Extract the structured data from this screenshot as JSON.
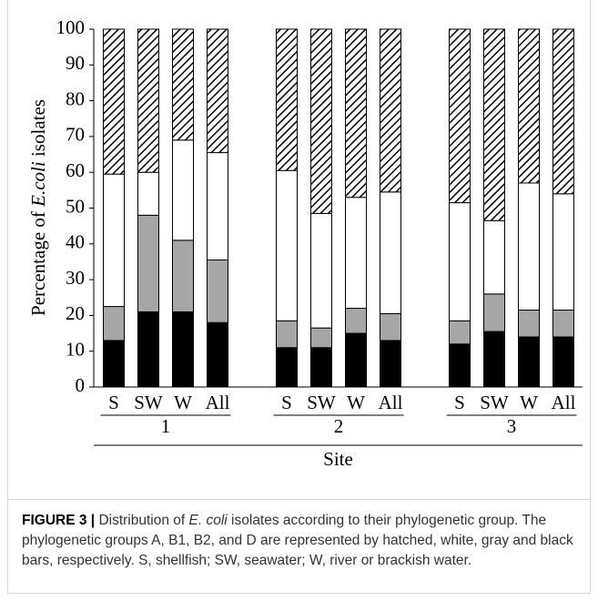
{
  "chart_data": {
    "type": "stacked-bar",
    "y_label": [
      "Percentage of ",
      "E.coli",
      " isolates"
    ],
    "x_label": "Site",
    "categories": [
      "S",
      "SW",
      "W",
      "All",
      "S",
      "SW",
      "W",
      "All",
      "S",
      "SW",
      "W",
      "All"
    ],
    "groups": [
      "1",
      "2",
      "3"
    ],
    "series": [
      {
        "color": "#000000",
        "values": [
          13,
          21,
          21,
          18,
          11,
          11,
          15,
          13,
          12,
          15.5,
          14,
          14
        ]
      },
      {
        "color": "#a6a6a6",
        "values": [
          9.5,
          27,
          20,
          17.5,
          7.5,
          5.5,
          7,
          7.5,
          6.5,
          10.5,
          7.5,
          7.5
        ]
      },
      {
        "color": "#ffffff",
        "values": [
          37,
          12,
          28,
          30,
          42,
          32,
          31,
          34,
          33,
          20.5,
          35.5,
          32.5
        ]
      },
      {
        "color": "#000000",
        "pattern": "hatch",
        "values": [
          40.5,
          40,
          31,
          34.5,
          39.5,
          51.5,
          47,
          45.5,
          48.5,
          53.5,
          43,
          46
        ]
      }
    ],
    "ylim": [
      0,
      100
    ],
    "yticks": [
      0,
      10,
      20,
      30,
      40,
      50,
      60,
      70,
      80,
      90,
      100
    ],
    "grid": false
  },
  "caption": {
    "label": "FIGURE 3 |",
    "parts": [
      " Distribution of ",
      "E. coli",
      " isolates according to their phylogenetic group. The phylogenetic groups A, B1, B2, and D are represented by hatched, white, gray and black bars, respectively. S, shellfish; SW, seawater; W, river or brackish water."
    ]
  }
}
